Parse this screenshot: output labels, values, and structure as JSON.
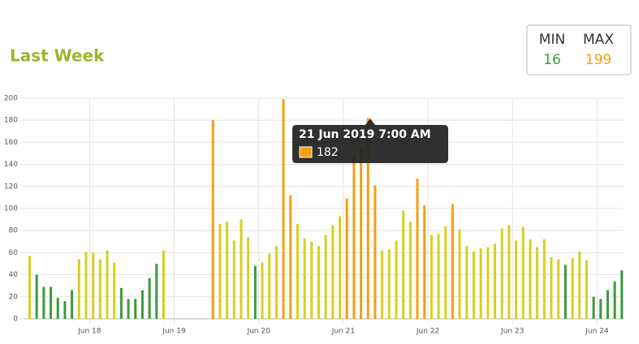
{
  "chart_data": {
    "type": "bar",
    "title": "Last Week",
    "summary": {
      "min_label": "MIN",
      "min": 16,
      "min_color": "#3c9a3c",
      "max_label": "MAX",
      "max": 199,
      "max_color": "#f5a010"
    },
    "tooltip": {
      "title": "21 Jun 2019 7:00 AM",
      "color": "#f5a010"
    },
    "x": [
      "2019-06-17T07:00",
      "2019-06-17T09:00",
      "2019-06-17T11:00",
      "2019-06-17T13:00",
      "2019-06-17T15:00",
      "2019-06-17T17:00",
      "2019-06-17T19:00",
      "2019-06-17T21:00",
      "2019-06-17T23:00",
      "2019-06-18T01:00",
      "2019-06-18T03:00",
      "2019-06-18T05:00",
      "2019-06-18T07:00",
      "2019-06-18T09:00",
      "2019-06-18T11:00",
      "2019-06-18T13:00",
      "2019-06-18T15:00",
      "2019-06-18T17:00",
      "2019-06-18T19:00",
      "2019-06-18T21:00",
      "2019-06-18T23:00",
      "2019-06-19T01:00",
      "2019-06-19T03:00",
      "2019-06-19T05:00",
      "2019-06-19T07:00",
      "2019-06-19T09:00",
      "2019-06-19T11:00",
      "2019-06-19T13:00",
      "2019-06-19T15:00",
      "2019-06-19T17:00",
      "2019-06-19T19:00",
      "2019-06-19T21:00",
      "2019-06-19T23:00",
      "2019-06-20T01:00",
      "2019-06-20T03:00",
      "2019-06-20T05:00",
      "2019-06-20T07:00",
      "2019-06-20T09:00",
      "2019-06-20T11:00",
      "2019-06-20T13:00",
      "2019-06-20T15:00",
      "2019-06-20T17:00",
      "2019-06-20T19:00",
      "2019-06-20T21:00",
      "2019-06-20T23:00",
      "2019-06-21T01:00",
      "2019-06-21T03:00",
      "2019-06-21T05:00",
      "2019-06-21T07:00",
      "2019-06-21T09:00",
      "2019-06-21T11:00",
      "2019-06-21T13:00",
      "2019-06-21T15:00",
      "2019-06-21T17:00",
      "2019-06-21T19:00",
      "2019-06-21T21:00",
      "2019-06-21T23:00",
      "2019-06-22T01:00",
      "2019-06-22T03:00",
      "2019-06-22T05:00",
      "2019-06-22T07:00",
      "2019-06-22T09:00",
      "2019-06-22T11:00",
      "2019-06-22T13:00",
      "2019-06-22T15:00",
      "2019-06-22T17:00",
      "2019-06-22T19:00",
      "2019-06-22T21:00",
      "2019-06-22T23:00",
      "2019-06-23T01:00",
      "2019-06-23T03:00",
      "2019-06-23T05:00",
      "2019-06-23T07:00",
      "2019-06-23T09:00",
      "2019-06-23T11:00",
      "2019-06-23T13:00",
      "2019-06-23T15:00",
      "2019-06-23T17:00",
      "2019-06-23T19:00",
      "2019-06-23T21:00",
      "2019-06-23T23:00",
      "2019-06-24T01:00",
      "2019-06-24T03:00",
      "2019-06-24T05:00",
      "2019-06-24T07:00"
    ],
    "values": [
      57,
      40,
      29,
      29,
      19,
      16,
      26,
      54,
      61,
      60,
      54,
      62,
      51,
      28,
      18,
      18,
      26,
      37,
      50,
      62,
      null,
      null,
      null,
      null,
      null,
      null,
      180,
      86,
      88,
      71,
      90,
      74,
      48,
      51,
      59,
      66,
      199,
      112,
      86,
      73,
      70,
      66,
      76,
      85,
      93,
      109,
      148,
      155,
      182,
      121,
      62,
      63,
      71,
      98,
      88,
      127,
      103,
      76,
      77,
      84,
      104,
      81,
      66,
      61,
      64,
      65,
      68,
      82,
      85,
      71,
      83,
      72,
      65,
      72,
      56,
      54,
      49,
      55,
      61,
      53,
      20,
      18,
      26,
      34,
      44
    ],
    "colors": [
      "#d6d01e",
      "#3c9a3c",
      "#3c9a3c",
      "#3c9a3c",
      "#3c9a3c",
      "#3c9a3c",
      "#3c9a3c",
      "#d6d01e",
      "#d6d01e",
      "#d6d01e",
      "#d6d01e",
      "#d6d01e",
      "#d6d01e",
      "#3c9a3c",
      "#3c9a3c",
      "#3c9a3c",
      "#3c9a3c",
      "#3c9a3c",
      "#3c9a3c",
      "#d6d01e",
      null,
      null,
      null,
      null,
      null,
      null,
      "#f5a010",
      "#d6d01e",
      "#d6d01e",
      "#d6d01e",
      "#d6d01e",
      "#d6d01e",
      "#3c9a3c",
      "#d6d01e",
      "#d6d01e",
      "#d6d01e",
      "#f5a010",
      "#f5a010",
      "#d6d01e",
      "#d6d01e",
      "#d6d01e",
      "#d6d01e",
      "#d6d01e",
      "#d6d01e",
      "#d6d01e",
      "#f5a010",
      "#f5a010",
      "#f5a010",
      "#f5a010",
      "#f5a010",
      "#d6d01e",
      "#d6d01e",
      "#d6d01e",
      "#d6d01e",
      "#d6d01e",
      "#f5a010",
      "#f5a010",
      "#d6d01e",
      "#d6d01e",
      "#d6d01e",
      "#f5a010",
      "#d6d01e",
      "#d6d01e",
      "#d6d01e",
      "#d6d01e",
      "#d6d01e",
      "#d6d01e",
      "#d6d01e",
      "#d6d01e",
      "#d6d01e",
      "#d6d01e",
      "#d6d01e",
      "#d6d01e",
      "#d6d01e",
      "#d6d01e",
      "#d6d01e",
      "#3c9a3c",
      "#d6d01e",
      "#d6d01e",
      "#d6d01e",
      "#3c9a3c",
      "#3c9a3c",
      "#3c9a3c",
      "#3c9a3c",
      "#3c9a3c"
    ],
    "xlim": [
      "2019-06-17T05:30",
      "2019-06-24T07:30"
    ],
    "xticks": [
      {
        "value": "2019-06-18T00:00",
        "label": "Jun 18"
      },
      {
        "value": "2019-06-19T00:00",
        "label": "Jun 19"
      },
      {
        "value": "2019-06-20T00:00",
        "label": "Jun 20"
      },
      {
        "value": "2019-06-21T00:00",
        "label": "Jun 21"
      },
      {
        "value": "2019-06-22T00:00",
        "label": "Jun 22"
      },
      {
        "value": "2019-06-23T00:00",
        "label": "Jun 23"
      },
      {
        "value": "2019-06-24T00:00",
        "label": "Jun 24"
      }
    ],
    "ylim": [
      0,
      200
    ],
    "yticks": [
      0,
      20,
      40,
      60,
      80,
      100,
      120,
      140,
      160,
      180,
      200
    ],
    "grid": true
  }
}
